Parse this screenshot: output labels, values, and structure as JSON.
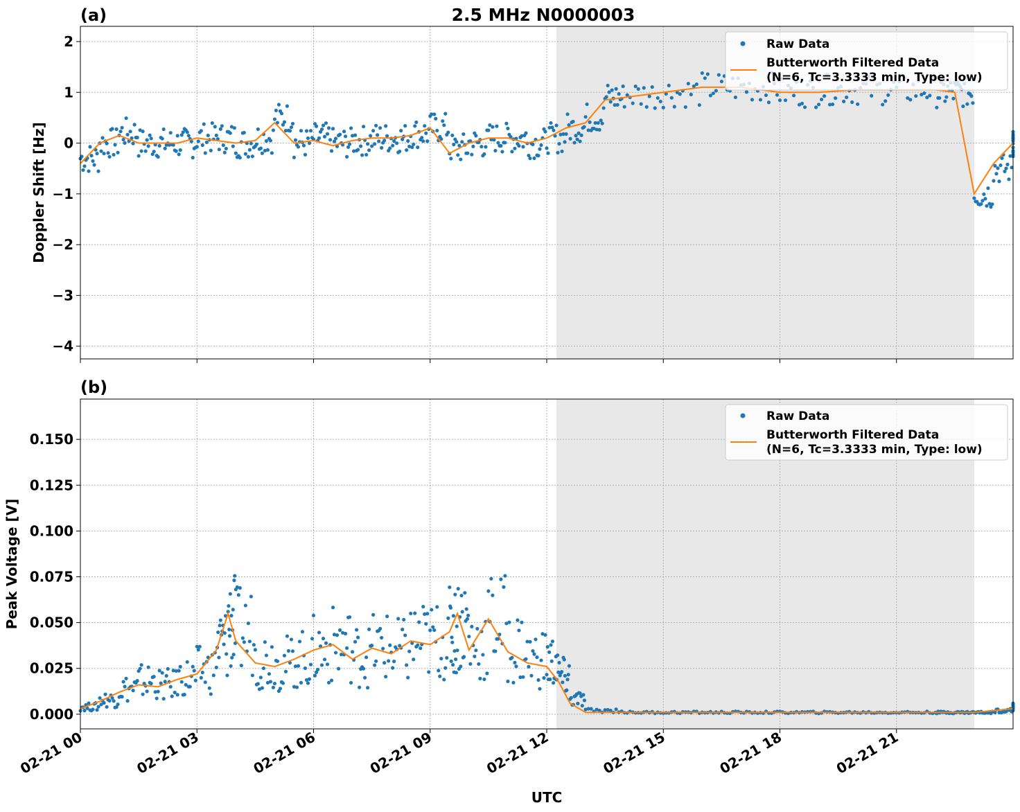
{
  "title": "2.5 MHz N0000003",
  "xlabel": "UTC",
  "x_tick_labels": [
    "02-21 00",
    "02-21 03",
    "02-21 06",
    "02-21 09",
    "02-21 12",
    "02-21 15",
    "02-21 18",
    "02-21 21"
  ],
  "legend": {
    "raw": "Raw Data",
    "filtered_line1": "Butterworth Filtered Data",
    "filtered_line2": "(N=6, Tc=3.3333 min, Type: low)"
  },
  "colors": {
    "raw": "#1f77b4",
    "filtered": "#ff7f0e",
    "shade": "#e8e8e8"
  },
  "chart_data": [
    {
      "panel": "(a)",
      "type": "scatter",
      "ylabel": "Doppler Shift [Hz]",
      "xlim_hours": [
        0,
        24
      ],
      "ylim": [
        -4.25,
        2.3
      ],
      "yticks": [
        2,
        1,
        0,
        -1,
        -2,
        -3,
        -4
      ],
      "ytick_labels": [
        "2",
        "1",
        "0",
        "−1",
        "−2",
        "−3",
        "−4"
      ],
      "shaded_interval_hours": [
        12.25,
        23.0
      ],
      "legend_position": "upper right",
      "grid": true,
      "series": [
        {
          "name": "Raw Data",
          "style": "points",
          "x": [
            0,
            0.5,
            1,
            1.5,
            2,
            2.5,
            3,
            3.5,
            4,
            4.5,
            5,
            5.5,
            6,
            6.5,
            7,
            7.5,
            8,
            8.5,
            9,
            9.5,
            10,
            10.5,
            11,
            11.5,
            12,
            12.5,
            13,
            13.5,
            14,
            15,
            16,
            17,
            18,
            19,
            20,
            21,
            22,
            22.5,
            23,
            23.5,
            24
          ],
          "y": [
            -0.3,
            0.0,
            0.2,
            0.0,
            0.0,
            0.0,
            0.1,
            0.1,
            0.0,
            0.1,
            0.5,
            0.0,
            0.1,
            0.0,
            0.05,
            0.1,
            0.1,
            0.2,
            0.3,
            -0.1,
            0.0,
            0.1,
            0.1,
            0.0,
            0.1,
            0.3,
            0.5,
            0.9,
            0.95,
            1.0,
            1.1,
            1.1,
            1.0,
            1.05,
            1.05,
            1.05,
            1.0,
            1.0,
            -1.0,
            -0.5,
            0.0
          ]
        },
        {
          "name": "Butterworth Filtered Data",
          "style": "line",
          "x": [
            0,
            0.5,
            1,
            1.5,
            2,
            2.5,
            3,
            3.5,
            4,
            4.5,
            5,
            5.5,
            6,
            6.5,
            7,
            7.5,
            8,
            8.5,
            9,
            9.5,
            10,
            10.5,
            11,
            11.5,
            12,
            12.5,
            13,
            13.5,
            14,
            15,
            16,
            17,
            18,
            19,
            20,
            21,
            22,
            22.5,
            23,
            23.5,
            24
          ],
          "y": [
            -0.4,
            0.0,
            0.15,
            0.0,
            0.0,
            0.0,
            0.1,
            0.05,
            0.0,
            0.05,
            0.4,
            0.0,
            0.05,
            -0.05,
            0.05,
            0.1,
            0.1,
            0.15,
            0.3,
            -0.2,
            0.0,
            0.1,
            0.1,
            0.0,
            0.1,
            0.3,
            0.4,
            0.85,
            0.9,
            1.0,
            1.1,
            1.1,
            1.0,
            1.0,
            1.05,
            1.05,
            1.05,
            1.0,
            -1.0,
            -0.4,
            0.0
          ]
        }
      ]
    },
    {
      "panel": "(b)",
      "type": "scatter",
      "ylabel": "Peak Voltage [V]",
      "xlim_hours": [
        0,
        24
      ],
      "ylim": [
        -0.008,
        0.172
      ],
      "yticks": [
        0.15,
        0.125,
        0.1,
        0.075,
        0.05,
        0.025,
        0.0
      ],
      "ytick_labels": [
        "0.150",
        "0.125",
        "0.100",
        "0.075",
        "0.050",
        "0.025",
        "0.000"
      ],
      "shaded_interval_hours": [
        12.25,
        23.0
      ],
      "legend_position": "upper right",
      "grid": true,
      "series": [
        {
          "name": "Raw Data",
          "style": "points",
          "x": [
            0,
            0.5,
            1,
            1.5,
            2,
            2.5,
            3,
            3.5,
            3.8,
            4,
            4.5,
            5,
            5.5,
            6,
            6.5,
            7,
            7.5,
            8,
            8.5,
            9,
            9.5,
            9.7,
            10,
            10.5,
            11,
            11.5,
            12,
            12.3,
            12.6,
            13,
            14,
            15,
            16,
            17,
            18,
            19,
            20,
            21,
            22,
            22.5,
            23,
            23.5,
            24
          ],
          "y": [
            0.004,
            0.008,
            0.014,
            0.018,
            0.016,
            0.02,
            0.024,
            0.038,
            0.05,
            0.045,
            0.03,
            0.028,
            0.03,
            0.035,
            0.038,
            0.032,
            0.036,
            0.034,
            0.04,
            0.04,
            0.045,
            0.05,
            0.038,
            0.05,
            0.036,
            0.03,
            0.028,
            0.02,
            0.008,
            0.002,
            0.001,
            0.001,
            0.001,
            0.001,
            0.001,
            0.001,
            0.001,
            0.001,
            0.001,
            0.001,
            0.001,
            0.002,
            0.004
          ]
        },
        {
          "name": "Butterworth Filtered Data",
          "style": "line",
          "x": [
            0,
            0.5,
            1,
            1.5,
            2,
            2.5,
            3,
            3.5,
            3.8,
            4,
            4.5,
            5,
            5.5,
            6,
            6.5,
            7,
            7.5,
            8,
            8.5,
            9,
            9.5,
            9.7,
            10,
            10.5,
            11,
            11.5,
            12,
            12.3,
            12.6,
            13,
            14,
            15,
            16,
            17,
            18,
            19,
            20,
            21,
            22,
            22.5,
            23,
            23.5,
            24
          ],
          "y": [
            0.003,
            0.007,
            0.012,
            0.016,
            0.015,
            0.019,
            0.022,
            0.035,
            0.055,
            0.04,
            0.028,
            0.026,
            0.03,
            0.035,
            0.038,
            0.03,
            0.036,
            0.033,
            0.04,
            0.038,
            0.045,
            0.055,
            0.035,
            0.052,
            0.034,
            0.028,
            0.026,
            0.018,
            0.006,
            0.001,
            0.001,
            0.001,
            0.001,
            0.001,
            0.001,
            0.001,
            0.001,
            0.001,
            0.001,
            0.001,
            0.001,
            0.002,
            0.003
          ]
        }
      ]
    }
  ]
}
